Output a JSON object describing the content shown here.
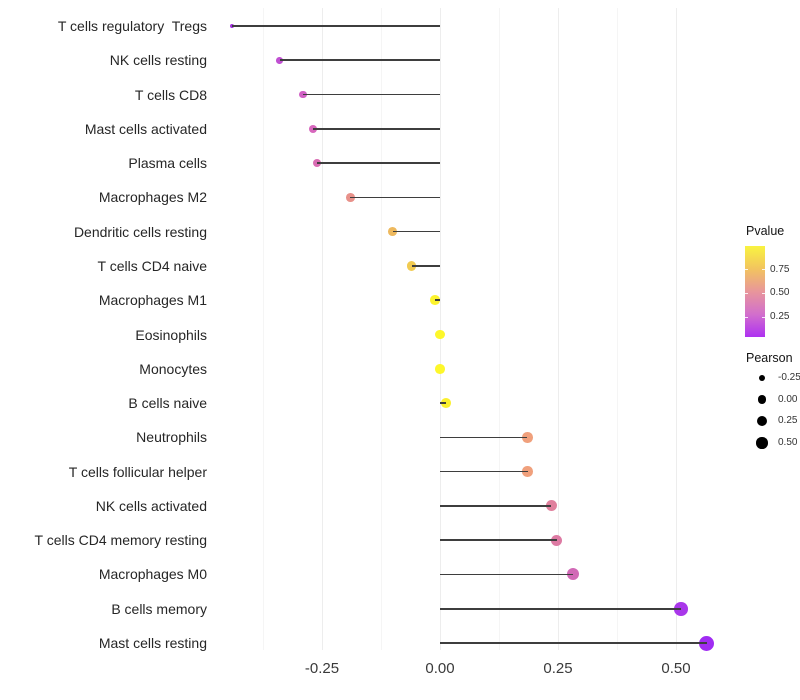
{
  "chart_data": {
    "type": "scatter",
    "subtype": "lollipop-dot-plot",
    "title": "",
    "xlabel": "",
    "ylabel": "",
    "grid": "vertical-only",
    "legend_position": "right",
    "xlim": [
      -0.46,
      0.59
    ],
    "x_major_ticks": [
      {
        "value": -0.25,
        "label": "-0.25"
      },
      {
        "value": 0.0,
        "label": "0.00"
      },
      {
        "value": 0.25,
        "label": "0.25"
      },
      {
        "value": 0.5,
        "label": "0.50"
      }
    ],
    "x_minor_ticks": [
      -0.375,
      -0.125,
      0.125,
      0.375
    ],
    "categories": [
      "T cells regulatory  Tregs",
      "NK cells resting",
      "T cells CD8",
      "Mast cells activated",
      "Plasma cells",
      "Macrophages M2",
      "Dendritic cells resting",
      "T cells CD4 naive",
      "Macrophages M1",
      "Eosinophils",
      "Monocytes",
      "B cells naive",
      "Neutrophils",
      "T cells follicular helper",
      "NK cells activated",
      "T cells CD4 memory resting",
      "Macrophages M0",
      "B cells memory",
      "Mast cells resting"
    ],
    "points": [
      {
        "label": "T cells regulatory  Tregs",
        "pearson": -0.44,
        "pvalue_est": 0.05,
        "color": "#a132dd",
        "r": 2
      },
      {
        "label": "NK cells resting",
        "pearson": -0.34,
        "pvalue_est": 0.18,
        "color": "#c050d2",
        "r": 3.3
      },
      {
        "label": "T cells CD8",
        "pearson": -0.29,
        "pvalue_est": 0.25,
        "color": "#d160c5",
        "r": 3.8
      },
      {
        "label": "Mast cells activated",
        "pearson": -0.27,
        "pvalue_est": 0.28,
        "color": "#d767bd",
        "r": 4
      },
      {
        "label": "Plasma cells",
        "pearson": -0.26,
        "pvalue_est": 0.3,
        "color": "#d96cb3",
        "r": 4
      },
      {
        "label": "Macrophages M2",
        "pearson": -0.19,
        "pvalue_est": 0.55,
        "color": "#e8918a",
        "r": 4.3
      },
      {
        "label": "Dendritic cells resting",
        "pearson": -0.1,
        "pvalue_est": 0.7,
        "color": "#eeb95e",
        "r": 4.4
      },
      {
        "label": "T cells CD4 naive",
        "pearson": -0.06,
        "pvalue_est": 0.78,
        "color": "#f1cb52",
        "r": 4.6
      },
      {
        "label": "Macrophages M1",
        "pearson": -0.01,
        "pvalue_est": 0.97,
        "color": "#fcf32e",
        "r": 4.8
      },
      {
        "label": "Eosinophils",
        "pearson": 0.0,
        "pvalue_est": 0.99,
        "color": "#fdf72b",
        "r": 4.8
      },
      {
        "label": "Monocytes",
        "pearson": 0.0,
        "pvalue_est": 0.99,
        "color": "#fdf72b",
        "r": 4.8
      },
      {
        "label": "B cells naive",
        "pearson": 0.012,
        "pvalue_est": 0.96,
        "color": "#fbf02f",
        "r": 4.9
      },
      {
        "label": "Neutrophils",
        "pearson": 0.185,
        "pvalue_est": 0.6,
        "color": "#f0a07c",
        "r": 5.2
      },
      {
        "label": "T cells follicular helper",
        "pearson": 0.186,
        "pvalue_est": 0.6,
        "color": "#f0a07c",
        "r": 5.3
      },
      {
        "label": "NK cells activated",
        "pearson": 0.236,
        "pvalue_est": 0.48,
        "color": "#e0809d",
        "r": 5.5
      },
      {
        "label": "T cells CD4 memory resting",
        "pearson": 0.247,
        "pvalue_est": 0.45,
        "color": "#dd7aa3",
        "r": 5.7
      },
      {
        "label": "Macrophages M0",
        "pearson": 0.281,
        "pvalue_est": 0.35,
        "color": "#d169b6",
        "r": 6
      },
      {
        "label": "B cells memory",
        "pearson": 0.511,
        "pvalue_est": 0.1,
        "color": "#a937ea",
        "r": 6.8
      },
      {
        "label": "Mast cells resting",
        "pearson": 0.565,
        "pvalue_est": 0.07,
        "color": "#a02cf2",
        "r": 7.5
      }
    ],
    "color_legend": {
      "title": "Pvalue",
      "domain": [
        0.04,
        1.0
      ],
      "ticks": [
        {
          "value": 0.75,
          "label": "0.75"
        },
        {
          "value": 0.5,
          "label": "0.50"
        },
        {
          "value": 0.25,
          "label": "0.25"
        }
      ],
      "gradient_top_to_bottom": [
        "#f9f340",
        "#f2c45f",
        "#e8969b",
        "#d26fcc",
        "#ae31f1"
      ]
    },
    "size_legend": {
      "title": "Pearson",
      "items": [
        {
          "label": "-0.25",
          "r": 3.3
        },
        {
          "label": "0.00",
          "r": 4.3
        },
        {
          "label": "0.25",
          "r": 5.0
        },
        {
          "label": "0.50",
          "r": 5.7
        }
      ]
    },
    "stem_color": "#3e3e3e",
    "baseline_value": 0.0
  }
}
